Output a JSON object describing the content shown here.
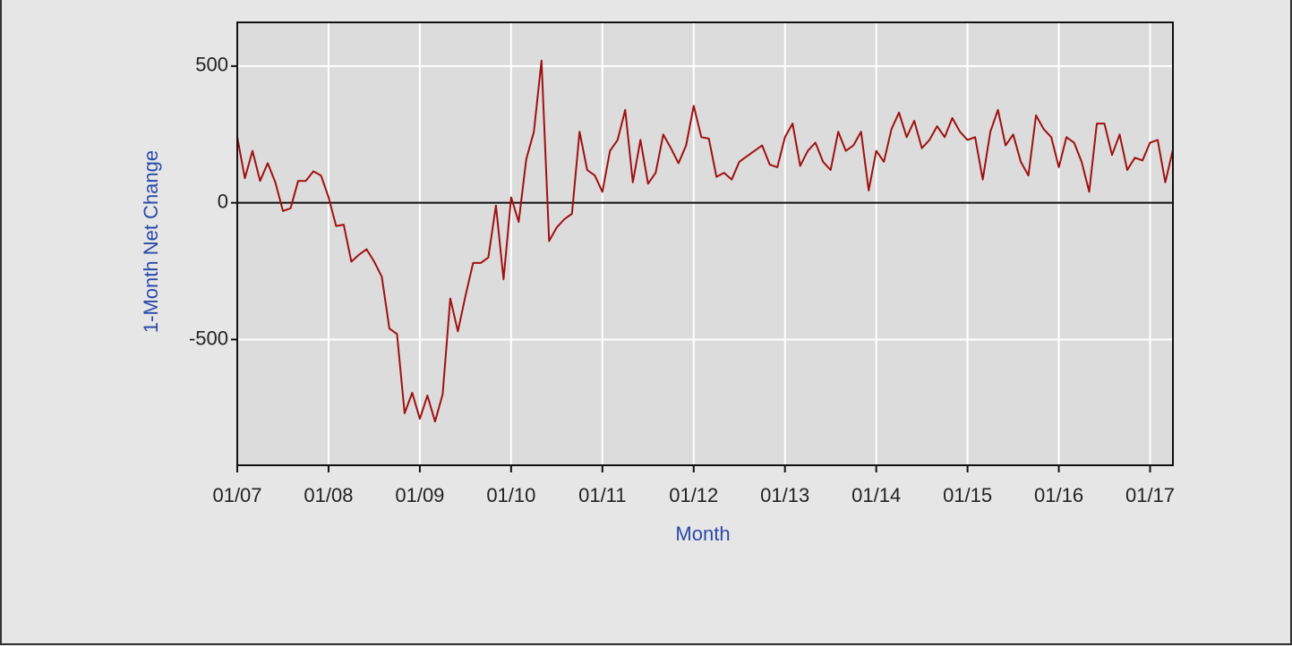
{
  "chart_data": {
    "type": "line",
    "x_label": "Month",
    "y_label": "1-Month Net Change",
    "categories": [
      "01/07",
      null,
      null,
      null,
      null,
      null,
      null,
      null,
      null,
      null,
      null,
      null,
      "01/08",
      null,
      null,
      null,
      null,
      null,
      null,
      null,
      null,
      null,
      null,
      null,
      "01/09",
      null,
      null,
      null,
      null,
      null,
      null,
      null,
      null,
      null,
      null,
      null,
      "01/10",
      null,
      null,
      null,
      null,
      null,
      null,
      null,
      null,
      null,
      null,
      null,
      "01/11",
      null,
      null,
      null,
      null,
      null,
      null,
      null,
      null,
      null,
      null,
      null,
      "01/12",
      null,
      null,
      null,
      null,
      null,
      null,
      null,
      null,
      null,
      null,
      null,
      "01/13",
      null,
      null,
      null,
      null,
      null,
      null,
      null,
      null,
      null,
      null,
      null,
      "01/14",
      null,
      null,
      null,
      null,
      null,
      null,
      null,
      null,
      null,
      null,
      null,
      "01/15",
      null,
      null,
      null,
      null,
      null,
      null,
      null,
      null,
      null,
      null,
      null,
      "01/16",
      null,
      null,
      null,
      null,
      null,
      null,
      null,
      null,
      null,
      null,
      null,
      "01/17",
      null,
      null,
      null
    ],
    "series": [
      {
        "name": "1-Month Net Change",
        "color": "#a01010",
        "values": [
          240,
          90,
          190,
          80,
          145,
          75,
          -30,
          -20,
          80,
          80,
          115,
          100,
          20,
          -85,
          -80,
          -215,
          -190,
          -170,
          -215,
          -270,
          -460,
          -480,
          -770,
          -695,
          -790,
          -705,
          -800,
          -700,
          -350,
          -470,
          -340,
          -220,
          -220,
          -200,
          -10,
          -280,
          20,
          -70,
          160,
          260,
          520,
          -140,
          -90,
          -60,
          -40,
          260,
          120,
          100,
          40,
          190,
          230,
          340,
          75,
          230,
          70,
          110,
          250,
          200,
          145,
          210,
          355,
          240,
          235,
          95,
          110,
          85,
          150,
          170,
          190,
          210,
          140,
          130,
          240,
          290,
          135,
          190,
          220,
          150,
          120,
          260,
          190,
          210,
          260,
          45,
          190,
          150,
          270,
          330,
          240,
          300,
          200,
          230,
          280,
          240,
          310,
          260,
          230,
          240,
          85,
          260,
          340,
          210,
          250,
          150,
          100,
          320,
          270,
          240,
          130,
          240,
          220,
          150,
          40,
          290,
          290,
          175,
          250,
          120,
          165,
          155,
          220,
          230,
          75,
          195
        ]
      }
    ],
    "ylim": [
      -960,
      660
    ],
    "yticks": [
      500,
      0,
      -500
    ],
    "grid": true
  }
}
